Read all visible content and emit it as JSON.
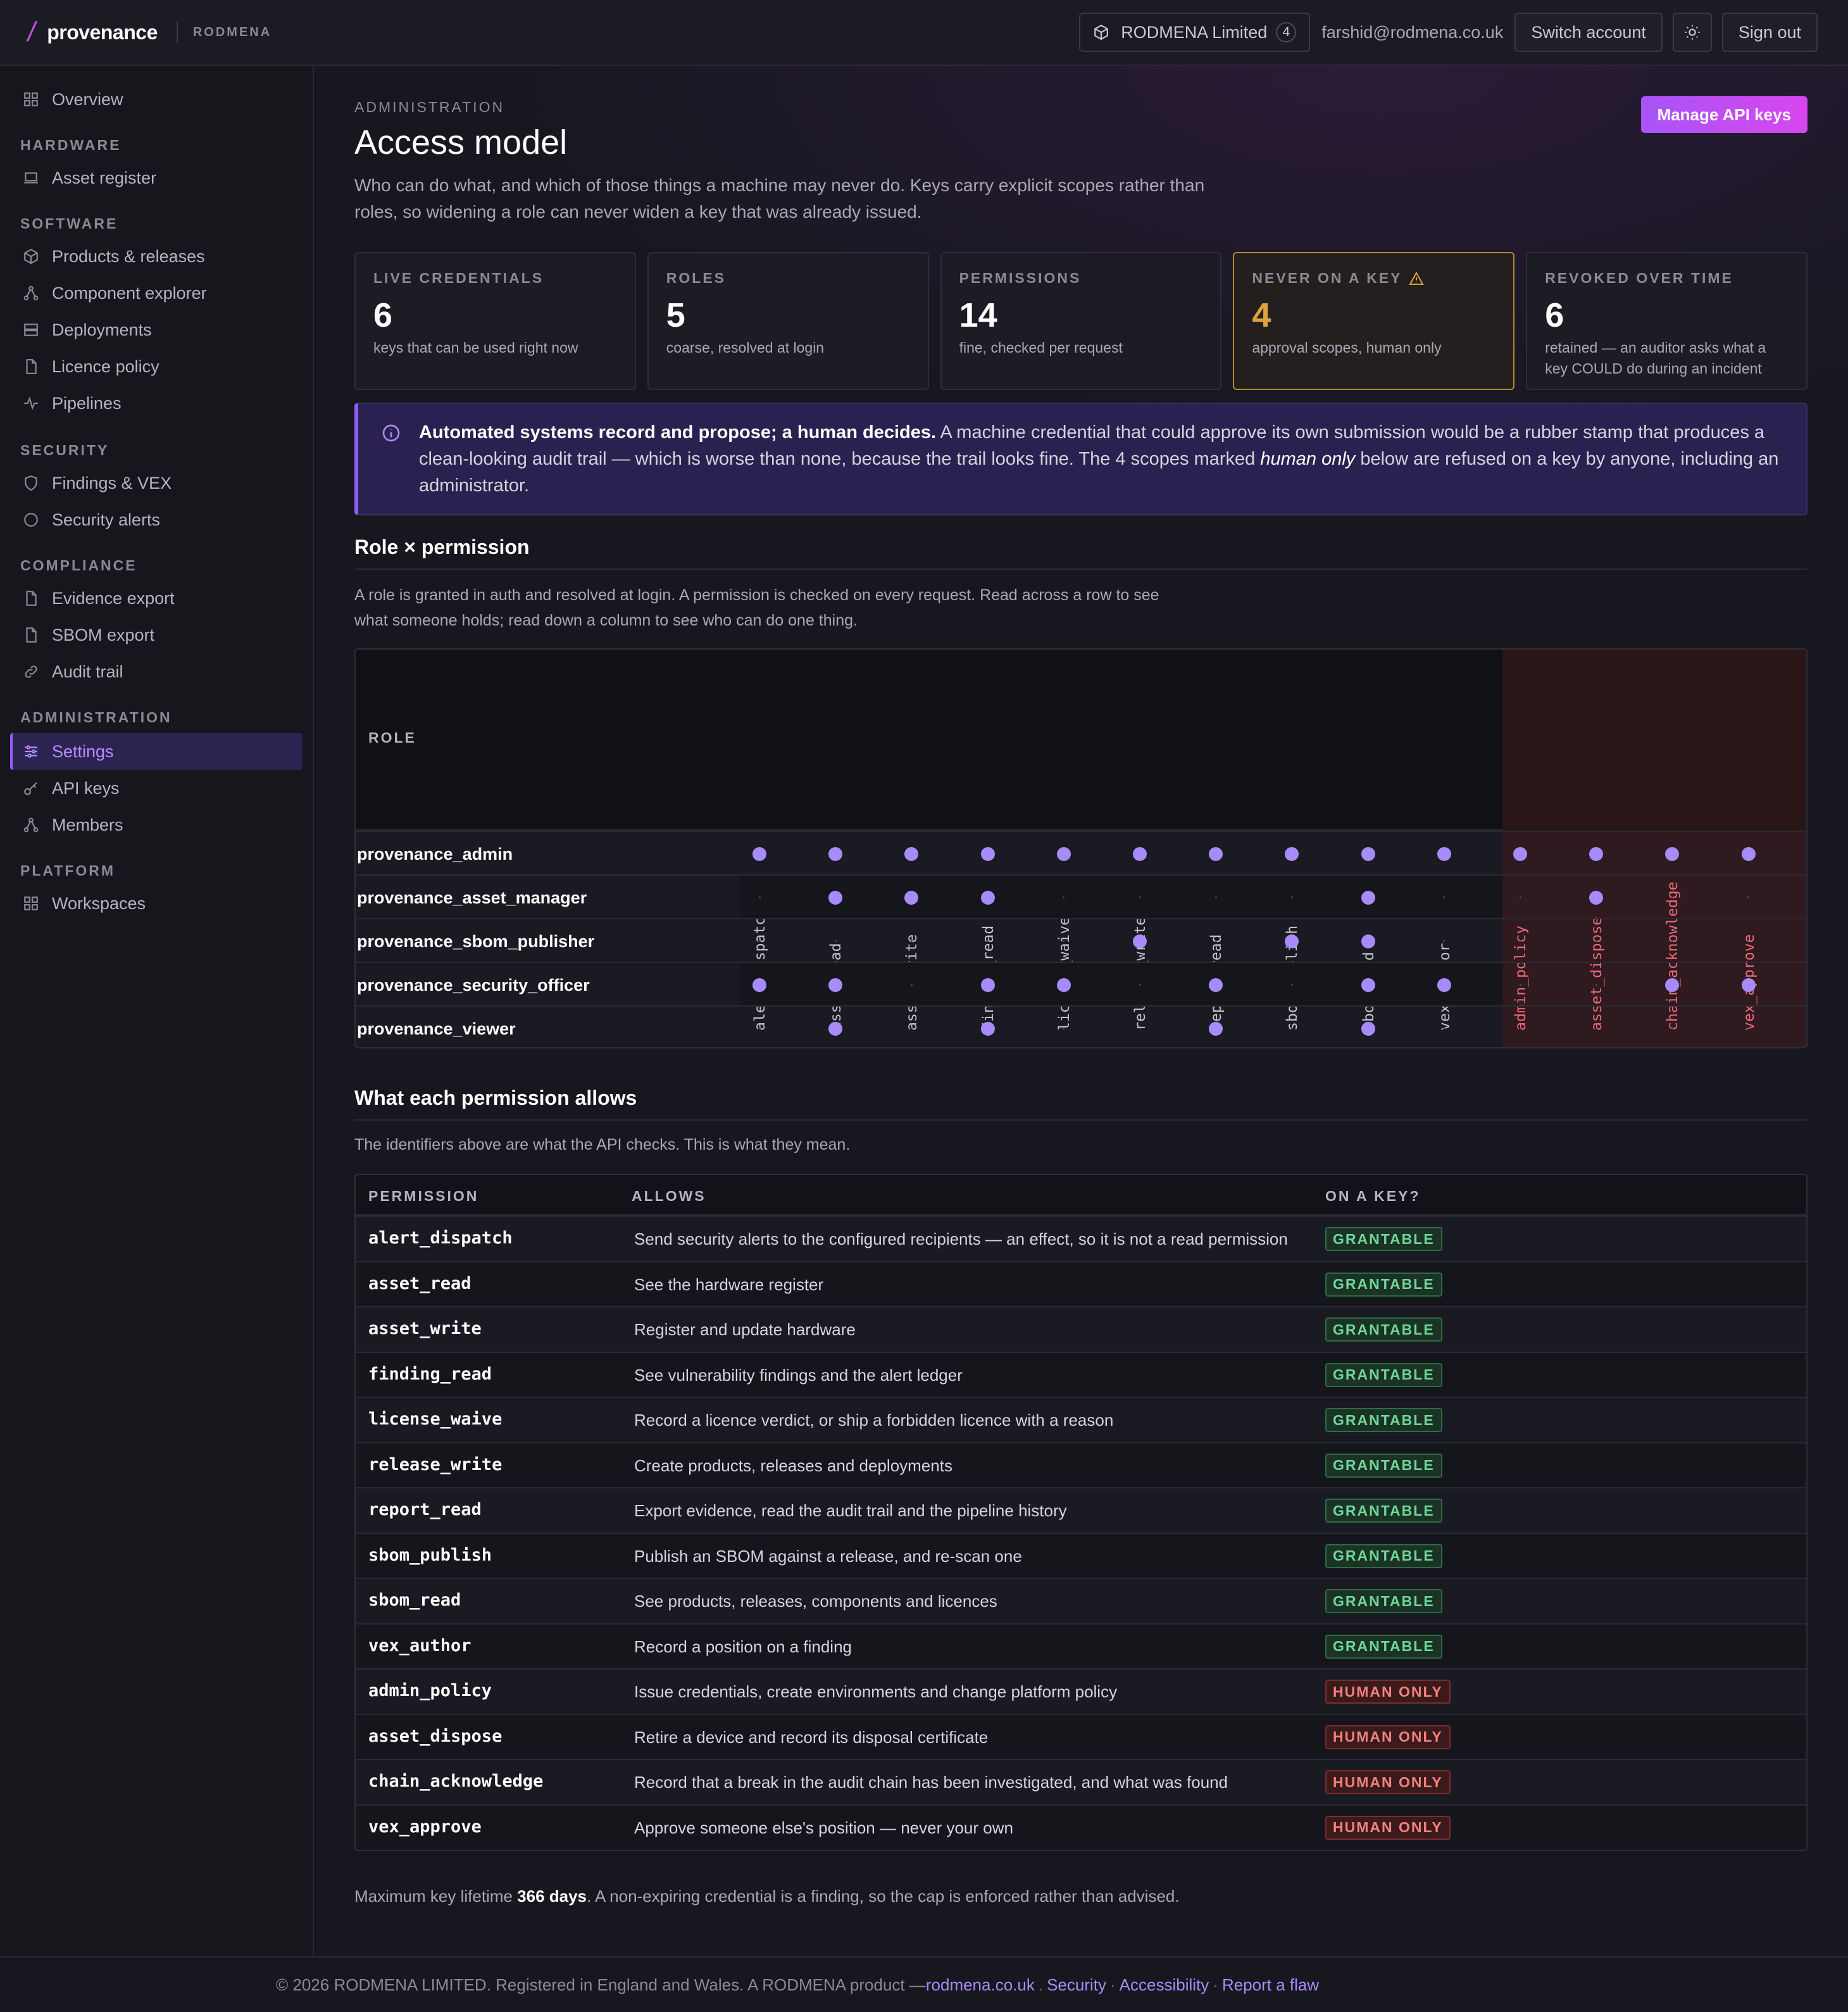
{
  "brand": {
    "name": "provenance",
    "org": "RODMENA"
  },
  "topbar": {
    "org_name": "RODMENA Limited",
    "org_count": "4",
    "user_email": "farshid@rodmena.co.uk",
    "switch_label": "Switch account",
    "signout_label": "Sign out"
  },
  "sidebar": {
    "overview": "Overview",
    "hardware_head": "HARDWARE",
    "asset_register": "Asset register",
    "software_head": "SOFTWARE",
    "products": "Products & releases",
    "component_explorer": "Component explorer",
    "deployments": "Deployments",
    "licence_policy": "Licence policy",
    "pipelines": "Pipelines",
    "security_head": "SECURITY",
    "findings": "Findings & VEX",
    "security_alerts": "Security alerts",
    "compliance_head": "COMPLIANCE",
    "evidence_export": "Evidence export",
    "sbom_export": "SBOM export",
    "audit_trail": "Audit trail",
    "administration_head": "ADMINISTRATION",
    "settings": "Settings",
    "api_keys": "API keys",
    "members": "Members",
    "platform_head": "PLATFORM",
    "workspaces": "Workspaces"
  },
  "page": {
    "eyebrow": "ADMINISTRATION",
    "title": "Access model",
    "description": "Who can do what, and which of those things a machine may never do. Keys carry explicit scopes rather than roles, so widening a role can never widen a key that was already issued.",
    "manage_button": "Manage API keys"
  },
  "stats": [
    {
      "label": "LIVE CREDENTIALS",
      "value": "6",
      "sub": "keys that can be used right now"
    },
    {
      "label": "ROLES",
      "value": "5",
      "sub": "coarse, resolved at login"
    },
    {
      "label": "PERMISSIONS",
      "value": "14",
      "sub": "fine, checked per request"
    },
    {
      "label": "NEVER ON A KEY",
      "value": "4",
      "sub": "approval scopes, human only"
    },
    {
      "label": "REVOKED OVER TIME",
      "value": "6",
      "sub": "retained — an auditor asks what a key COULD do during an incident"
    }
  ],
  "callout": {
    "bold": "Automated systems record and propose; a human decides.",
    "text1": " A machine credential that could approve its own submission would be a rubber stamp that produces a clean-looking audit trail — which is worse than none, because the trail looks fine. The 4 scopes marked ",
    "italic": "human only",
    "text2": " below are refused on a key by anyone, including an administrator."
  },
  "matrix_section": {
    "title": "Role × permission",
    "desc": "A role is granted in auth and resolved at login. A permission is checked on every request. Read across a row to see what someone holds; read down a column to see who can do one thing.",
    "role_head": "ROLE",
    "columns": [
      "alert_dispatch",
      "asset_read",
      "asset_write",
      "finding_read",
      "license_waive",
      "release_write",
      "report_read",
      "sbom_publish",
      "sbom_read",
      "vex_author",
      "admin_policy",
      "asset_dispose",
      "chain_acknowledge",
      "vex_approve"
    ],
    "human_only_columns": [
      "admin_policy",
      "asset_dispose",
      "chain_acknowledge",
      "vex_approve"
    ],
    "rows": [
      {
        "role": "provenance_admin",
        "grants": [
          1,
          1,
          1,
          1,
          1,
          1,
          1,
          1,
          1,
          1,
          1,
          1,
          1,
          1
        ]
      },
      {
        "role": "provenance_asset_manager",
        "grants": [
          0,
          1,
          1,
          1,
          0,
          0,
          0,
          0,
          1,
          0,
          0,
          1,
          0,
          0
        ]
      },
      {
        "role": "provenance_sbom_publisher",
        "grants": [
          0,
          0,
          0,
          0,
          0,
          1,
          0,
          1,
          1,
          0,
          0,
          0,
          0,
          0
        ]
      },
      {
        "role": "provenance_security_officer",
        "grants": [
          1,
          1,
          0,
          1,
          1,
          0,
          1,
          0,
          1,
          1,
          0,
          0,
          1,
          1
        ]
      },
      {
        "role": "provenance_viewer",
        "grants": [
          0,
          1,
          0,
          1,
          0,
          0,
          1,
          0,
          1,
          0,
          0,
          0,
          0,
          0
        ]
      }
    ]
  },
  "perm_section": {
    "title": "What each permission allows",
    "desc": "The identifiers above are what the API checks. This is what they mean.",
    "col_permission": "PERMISSION",
    "col_allows": "ALLOWS",
    "col_onkey": "ON A KEY?",
    "rows": [
      {
        "name": "alert_dispatch",
        "allows": "Send security alerts to the configured recipients — an effect, so it is not a read permission",
        "status": "GRANTABLE"
      },
      {
        "name": "asset_read",
        "allows": "See the hardware register",
        "status": "GRANTABLE"
      },
      {
        "name": "asset_write",
        "allows": "Register and update hardware",
        "status": "GRANTABLE"
      },
      {
        "name": "finding_read",
        "allows": "See vulnerability findings and the alert ledger",
        "status": "GRANTABLE"
      },
      {
        "name": "license_waive",
        "allows": "Record a licence verdict, or ship a forbidden licence with a reason",
        "status": "GRANTABLE"
      },
      {
        "name": "release_write",
        "allows": "Create products, releases and deployments",
        "status": "GRANTABLE"
      },
      {
        "name": "report_read",
        "allows": "Export evidence, read the audit trail and the pipeline history",
        "status": "GRANTABLE"
      },
      {
        "name": "sbom_publish",
        "allows": "Publish an SBOM against a release, and re-scan one",
        "status": "GRANTABLE"
      },
      {
        "name": "sbom_read",
        "allows": "See products, releases, components and licences",
        "status": "GRANTABLE"
      },
      {
        "name": "vex_author",
        "allows": "Record a position on a finding",
        "status": "GRANTABLE"
      },
      {
        "name": "admin_policy",
        "allows": "Issue credentials, create environments and change platform policy",
        "status": "HUMAN ONLY"
      },
      {
        "name": "asset_dispose",
        "allows": "Retire a device and record its disposal certificate",
        "status": "HUMAN ONLY"
      },
      {
        "name": "chain_acknowledge",
        "allows": "Record that a break in the audit chain has been investigated, and what was found",
        "status": "HUMAN ONLY"
      },
      {
        "name": "vex_approve",
        "allows": "Approve someone else's position — never your own",
        "status": "HUMAN ONLY"
      }
    ]
  },
  "footnote": {
    "prefix": "Maximum key lifetime ",
    "bold": "366 days",
    "suffix": ". A non-expiring credential is a finding, so the cap is enforced rather than advised."
  },
  "footer": {
    "text": "© 2026 RODMENA LIMITED. Registered in England and Wales. A RODMENA product — ",
    "link_site": "rodmena.co.uk",
    "link_security": "Security",
    "link_accessibility": "Accessibility",
    "link_report": "Report a flaw"
  },
  "colors": {
    "accent": "#a78bfa",
    "warn": "#e0a23c",
    "grantable": "#6fd69a",
    "human_only": "#f58080"
  }
}
